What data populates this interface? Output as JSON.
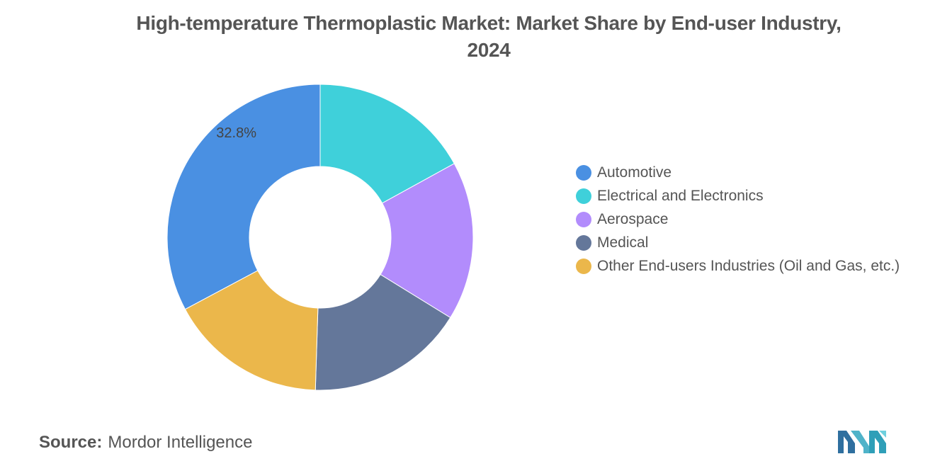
{
  "title_line1": "High-temperature Thermoplastic Market: Market Share by End-user Industry,",
  "title_line2": "2024",
  "source_label": "Source:",
  "source_value": "Mordor Intelligence",
  "logo_icon": "mordor-intelligence-logo-icon",
  "chart_data": {
    "type": "pie",
    "title": "High-temperature Thermoplastic Market: Market Share by End-user Industry, 2024",
    "donut": true,
    "legend_position": "right",
    "slices": [
      {
        "name": "Automotive",
        "value": 32.8,
        "color": "#4a90e2",
        "label": "32.8%"
      },
      {
        "name": "Electrical and Electronics",
        "value": 17.0,
        "color": "#3fd0da",
        "label": ""
      },
      {
        "name": "Aerospace",
        "value": 16.8,
        "color": "#b28cfc",
        "label": ""
      },
      {
        "name": "Medical",
        "value": 16.7,
        "color": "#64779a",
        "label": ""
      },
      {
        "name": "Other End-users Industries (Oil and Gas, etc.)",
        "value": 16.7,
        "color": "#ebb74b",
        "label": ""
      }
    ]
  }
}
